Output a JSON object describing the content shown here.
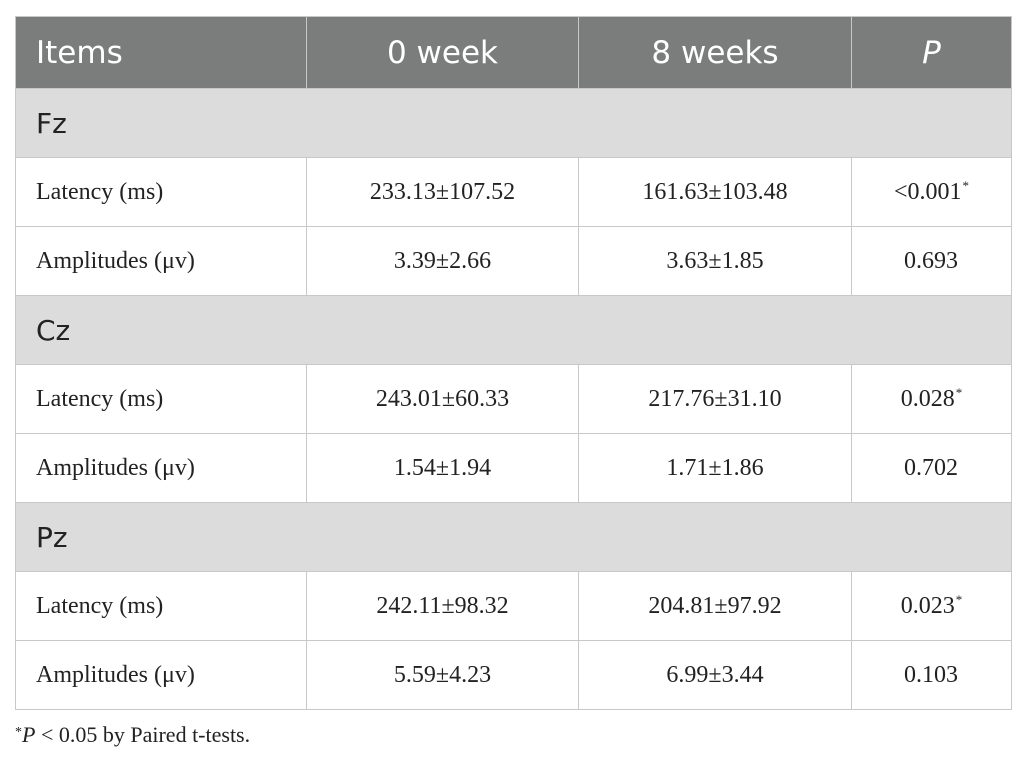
{
  "header": {
    "items": "Items",
    "week0": "0 week",
    "week8": "8 weeks",
    "p": "P"
  },
  "groups": [
    {
      "name": "Fz",
      "rows": [
        {
          "label": "Latency (ms)",
          "w0": "233.13±107.52",
          "w8": "161.63±103.48",
          "p": "<0.001",
          "sig": "*"
        },
        {
          "label": "Amplitudes (μv)",
          "w0": "3.39±2.66",
          "w8": "3.63±1.85",
          "p": "0.693",
          "sig": ""
        }
      ]
    },
    {
      "name": "Cz",
      "rows": [
        {
          "label": "Latency (ms)",
          "w0": "243.01±60.33",
          "w8": "217.76±31.10",
          "p": "0.028",
          "sig": "*"
        },
        {
          "label": "Amplitudes (μv)",
          "w0": "1.54±1.94",
          "w8": "1.71±1.86",
          "p": "0.702",
          "sig": ""
        }
      ]
    },
    {
      "name": "Pz",
      "rows": [
        {
          "label": "Latency (ms)",
          "w0": "242.11±98.32",
          "w8": "204.81±97.92",
          "p": "0.023",
          "sig": "*"
        },
        {
          "label": "Amplitudes (μv)",
          "w0": "5.59±4.23",
          "w8": "6.99±3.44",
          "p": "0.103",
          "sig": ""
        }
      ]
    }
  ],
  "footnote": {
    "star": "*",
    "p": "P",
    "text": " < 0.05 by Paired t-tests."
  }
}
